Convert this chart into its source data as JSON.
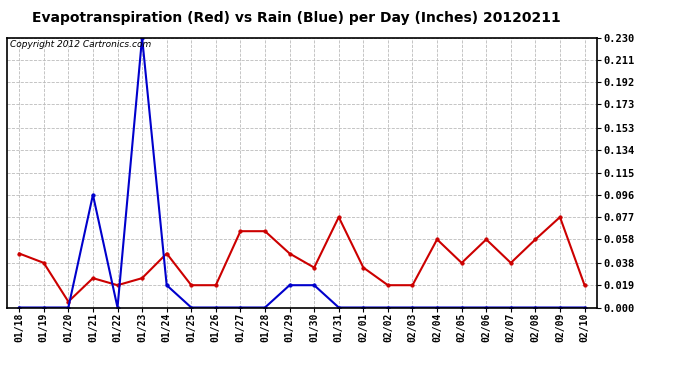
{
  "title": "Evapotranspiration (Red) vs Rain (Blue) per Day (Inches) 20120211",
  "copyright_text": "Copyright 2012 Cartronics.com",
  "x_labels": [
    "01/18",
    "01/19",
    "01/20",
    "01/21",
    "01/22",
    "01/23",
    "01/24",
    "01/25",
    "01/26",
    "01/27",
    "01/28",
    "01/29",
    "01/30",
    "01/31",
    "02/01",
    "02/02",
    "02/03",
    "02/04",
    "02/05",
    "02/06",
    "02/07",
    "02/08",
    "02/09",
    "02/10"
  ],
  "red_values": [
    0.046,
    0.038,
    0.005,
    0.025,
    0.019,
    0.025,
    0.046,
    0.019,
    0.019,
    0.065,
    0.065,
    0.046,
    0.034,
    0.077,
    0.034,
    0.019,
    0.019,
    0.058,
    0.038,
    0.058,
    0.038,
    0.058,
    0.077,
    0.019
  ],
  "blue_values": [
    0.0,
    0.0,
    0.0,
    0.096,
    0.0,
    0.23,
    0.019,
    0.0,
    0.0,
    0.0,
    0.0,
    0.019,
    0.019,
    0.0,
    0.0,
    0.0,
    0.0,
    0.0,
    0.0,
    0.0,
    0.0,
    0.0,
    0.0,
    0.0
  ],
  "red_color": "#cc0000",
  "blue_color": "#0000cc",
  "yticks": [
    0.0,
    0.019,
    0.038,
    0.058,
    0.077,
    0.096,
    0.115,
    0.134,
    0.153,
    0.173,
    0.192,
    0.211,
    0.23
  ],
  "ylim": [
    0.0,
    0.23
  ],
  "bg_color": "#ffffff",
  "grid_color": "#bbbbbb",
  "title_fontsize": 10,
  "copyright_fontsize": 6.5,
  "tick_fontsize": 7,
  "ytick_fontsize": 7.5
}
